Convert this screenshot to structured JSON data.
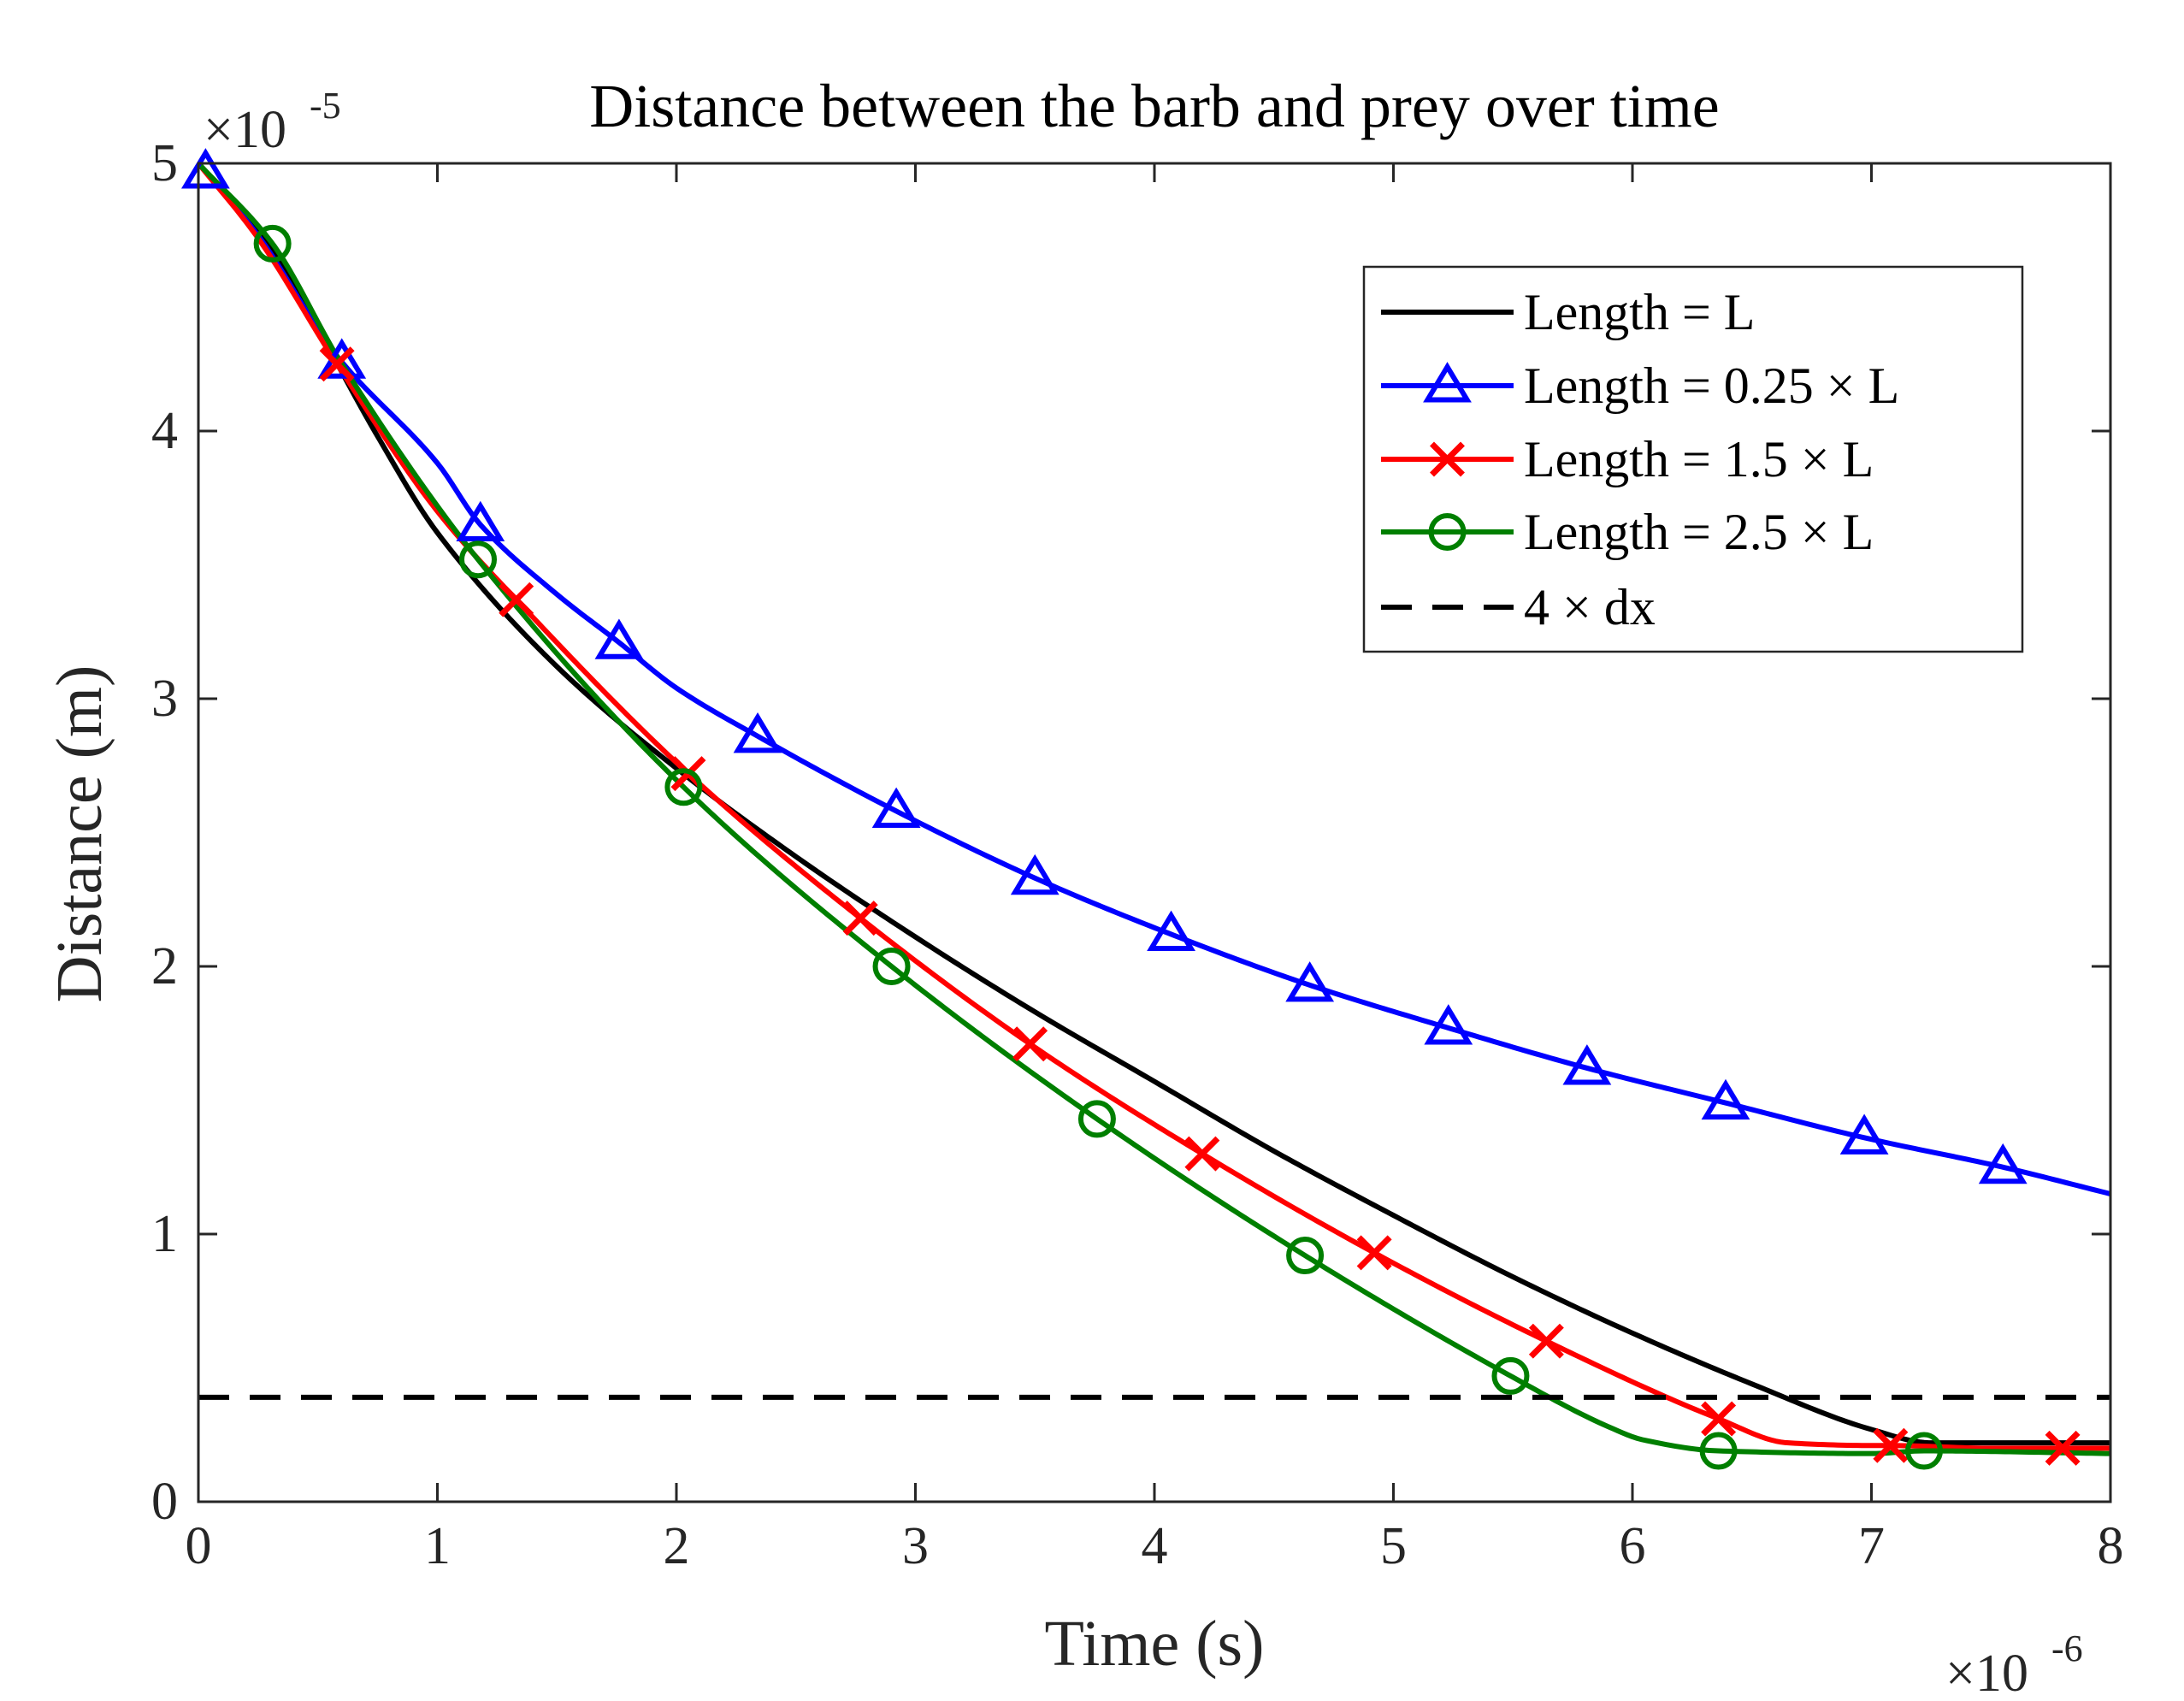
{
  "chart_data": {
    "type": "line",
    "title": "Distance between the barb and prey over time",
    "xlabel": "Time (s)",
    "ylabel": "Distance (m)",
    "xlim": [
      0,
      8
    ],
    "ylim": [
      0,
      5
    ],
    "x_ticks": [
      "0",
      "1",
      "2",
      "3",
      "4",
      "5",
      "6",
      "7",
      "8"
    ],
    "y_ticks": [
      "0",
      "1",
      "2",
      "3",
      "4",
      "5"
    ],
    "x_multiplier": "×10",
    "x_exponent": "-6",
    "y_multiplier": "×10",
    "y_exponent": "-5",
    "legend_position": "top-right",
    "series": [
      {
        "name": "Length =  L",
        "color": "#000000",
        "style": "solid",
        "marker": "none",
        "x": [
          0,
          0.25,
          0.5,
          0.75,
          1,
          1.5,
          2,
          2.5,
          3,
          3.5,
          4,
          4.5,
          5,
          5.5,
          6,
          6.5,
          7,
          7.25,
          7.5,
          8
        ],
        "y": [
          5.0,
          4.75,
          4.38,
          3.98,
          3.62,
          3.12,
          2.74,
          2.41,
          2.11,
          1.83,
          1.57,
          1.31,
          1.07,
          0.84,
          0.63,
          0.44,
          0.27,
          0.22,
          0.22,
          0.22
        ],
        "markers_x": []
      },
      {
        "name": "Length = 0.25 × L",
        "color": "#0000FF",
        "style": "solid",
        "marker": "triangle",
        "x": [
          0,
          0.25,
          0.58,
          1.0,
          1.18,
          1.5,
          1.76,
          2.0,
          2.34,
          2.92,
          3.5,
          4.07,
          4.65,
          5.23,
          5.81,
          6.39,
          6.97,
          7.55,
          8.0
        ],
        "y": [
          5.0,
          4.73,
          4.28,
          3.88,
          3.65,
          3.39,
          3.21,
          3.04,
          2.86,
          2.58,
          2.33,
          2.12,
          1.93,
          1.77,
          1.62,
          1.49,
          1.36,
          1.25,
          1.15
        ],
        "markers_x": [
          0.03,
          0.6,
          1.18,
          1.76,
          2.34,
          2.92,
          3.5,
          4.07,
          4.65,
          5.23,
          5.81,
          6.39,
          6.97,
          7.55
        ]
      },
      {
        "name": "Length = 1.5 × L",
        "color": "#FF0000",
        "style": "solid",
        "marker": "x",
        "x": [
          0,
          0.25,
          0.58,
          1.0,
          1.33,
          2.05,
          2.77,
          3.48,
          4.2,
          4.92,
          5.64,
          6.36,
          6.65,
          7.0,
          7.08,
          7.5,
          7.8,
          8.0
        ],
        "y": [
          5.0,
          4.72,
          4.25,
          3.7,
          3.37,
          2.72,
          2.18,
          1.71,
          1.3,
          0.93,
          0.6,
          0.31,
          0.22,
          0.21,
          0.21,
          0.2,
          0.2,
          0.2
        ],
        "markers_x": [
          0.58,
          1.33,
          2.05,
          2.77,
          3.48,
          4.2,
          4.92,
          5.64,
          6.36,
          7.08,
          7.8
        ]
      },
      {
        "name": "Length = 2.5 × L",
        "color": "#007F00",
        "style": "solid",
        "marker": "circle",
        "x": [
          0,
          0.31,
          0.6,
          1.17,
          2.03,
          2.9,
          3.76,
          4.63,
          5.49,
          5.9,
          6.05,
          6.36,
          7.0,
          7.22,
          8.0
        ],
        "y": [
          5.0,
          4.7,
          4.25,
          3.52,
          2.67,
          2.0,
          1.43,
          0.92,
          0.47,
          0.28,
          0.23,
          0.19,
          0.18,
          0.19,
          0.18
        ],
        "markers_x": [
          0.31,
          1.17,
          2.03,
          2.9,
          3.76,
          4.63,
          5.49,
          6.36,
          7.22
        ]
      },
      {
        "name": "4 × dx",
        "color": "#000000",
        "style": "dashed",
        "marker": "none",
        "x": [
          0,
          8
        ],
        "y": [
          0.39,
          0.39
        ],
        "markers_x": []
      }
    ]
  }
}
